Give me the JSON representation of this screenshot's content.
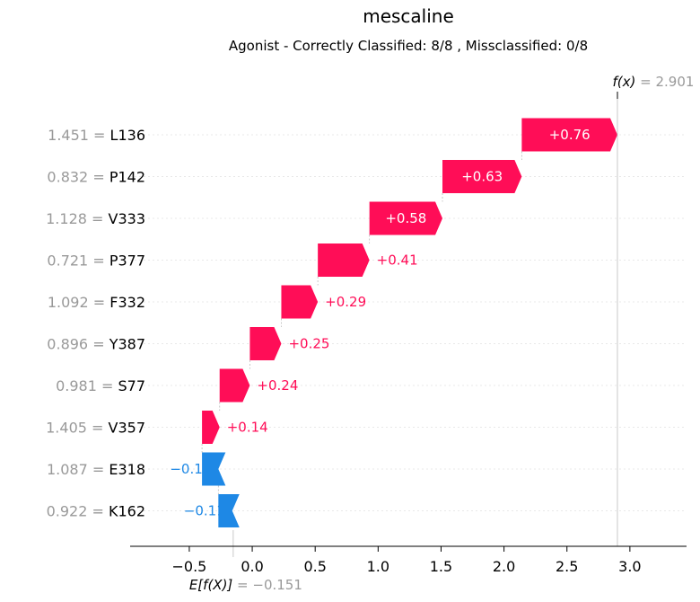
{
  "chart_data": {
    "type": "waterfall",
    "title": "mescaline",
    "subtitle": "Agonist - Correctly Classified: 8/8 , Missclassified: 0/8",
    "base_value": -0.151,
    "base_label": "E[f(X)]",
    "base_value_text": "= −0.151",
    "output_value": 2.901,
    "output_label": "f(x)",
    "output_value_text": "= 2.901",
    "xlim": [
      -0.97,
      3.45
    ],
    "xticks": [
      -0.5,
      0.0,
      0.5,
      1.0,
      1.5,
      2.0,
      2.5,
      3.0
    ],
    "xtick_labels": [
      "−0.5",
      "0.0",
      "0.5",
      "1.0",
      "1.5",
      "2.0",
      "2.5",
      "3.0"
    ],
    "features": [
      {
        "name": "L136",
        "value": "1.451",
        "contribution": 0.76,
        "label": "+0.76"
      },
      {
        "name": "P142",
        "value": "0.832",
        "contribution": 0.63,
        "label": "+0.63"
      },
      {
        "name": "V333",
        "value": "1.128",
        "contribution": 0.58,
        "label": "+0.58"
      },
      {
        "name": "P377",
        "value": "0.721",
        "contribution": 0.41,
        "label": "+0.41"
      },
      {
        "name": "F332",
        "value": "1.092",
        "contribution": 0.29,
        "label": "+0.29"
      },
      {
        "name": "Y387",
        "value": "0.896",
        "contribution": 0.25,
        "label": "+0.25"
      },
      {
        "name": "S77",
        "value": "0.981",
        "contribution": 0.24,
        "label": "+0.24"
      },
      {
        "name": "V357",
        "value": "1.405",
        "contribution": 0.14,
        "label": "+0.14"
      },
      {
        "name": "E318",
        "value": "1.087",
        "contribution": -0.13,
        "label": "−0.13"
      },
      {
        "name": "K162",
        "value": "0.922",
        "contribution": -0.11,
        "label": "−0.11"
      }
    ],
    "colors": {
      "positive": "#ff0d57",
      "negative": "#1e88e5",
      "value_text": "#999999"
    }
  }
}
